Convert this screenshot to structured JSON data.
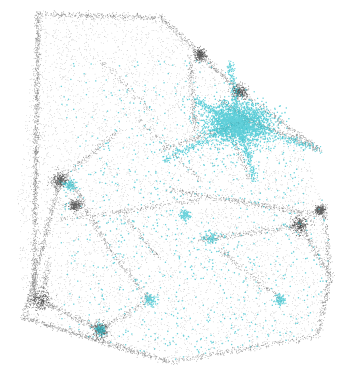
{
  "colors": {
    "background": "#ffffff",
    "base_points": "#1c1c1c",
    "highlight_points": "#2bbfcc"
  },
  "layers": [
    {
      "name": "base",
      "color_key": "base_points"
    },
    {
      "name": "highlight",
      "color_key": "highlight_points"
    }
  ]
}
